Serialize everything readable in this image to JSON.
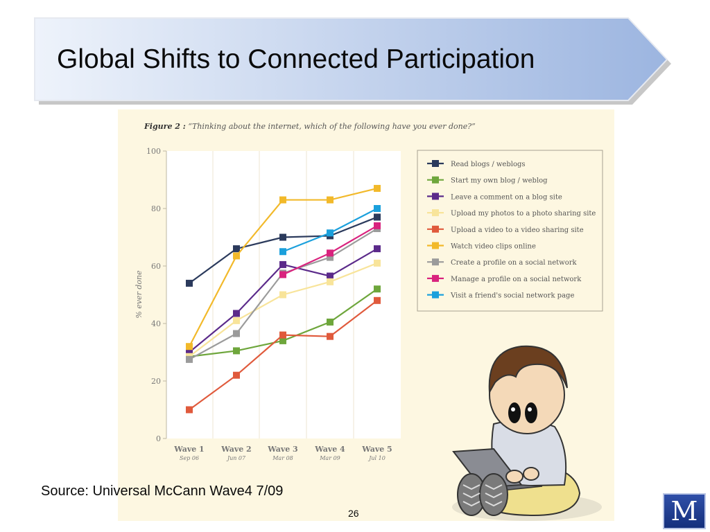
{
  "slide": {
    "title": "Global Shifts to Connected Participation",
    "source": "Source: Universal McCann Wave4 7/09",
    "page_number": "26",
    "logo_letter": "M"
  },
  "figure": {
    "label": "Figure 2 :",
    "question": "“Thinking about the internet, which of the following have you ever done?”"
  },
  "chart_data": {
    "type": "line",
    "ylabel": "% ever done",
    "ylim": [
      0,
      100
    ],
    "yticks": [
      0,
      20,
      40,
      60,
      80,
      100
    ],
    "categories": [
      "Wave 1",
      "Wave 2",
      "Wave 3",
      "Wave 4",
      "Wave 5"
    ],
    "category_dates": [
      "Sep 06",
      "Jun 07",
      "Mar 08",
      "Mar 09",
      "Jul 10"
    ],
    "grid": true,
    "legend_position": "right",
    "series": [
      {
        "name": "Read blogs / weblogs",
        "color": "#2b3a5c",
        "values": [
          54,
          66,
          70,
          70.5,
          77
        ]
      },
      {
        "name": "Start my own blog / weblog",
        "color": "#6ea63c",
        "values": [
          28.5,
          30.5,
          34,
          40.5,
          52
        ]
      },
      {
        "name": "Leave a comment on a blog site",
        "color": "#5b2a8a",
        "values": [
          30,
          43.5,
          60.5,
          56.5,
          66
        ]
      },
      {
        "name": "Upload my photos to a  photo sharing site",
        "color": "#f8e49a",
        "values": [
          28.5,
          41,
          50,
          54.5,
          61
        ]
      },
      {
        "name": "Upload a video to a video sharing site",
        "color": "#e05a3c",
        "values": [
          10,
          22,
          36,
          35.5,
          48
        ]
      },
      {
        "name": "Watch video clips online",
        "color": "#f2b92a",
        "values": [
          32,
          63.5,
          83,
          83,
          87
        ]
      },
      {
        "name": "Create a profile on a social network",
        "color": "#9b9b9b",
        "values": [
          27.5,
          36.5,
          57.5,
          63,
          73
        ]
      },
      {
        "name": "Manage a profile on a social network",
        "color": "#d9237e",
        "values": [
          null,
          null,
          57,
          64.5,
          74
        ]
      },
      {
        "name": "Visit a friend's social network page",
        "color": "#1ba0dc",
        "values": [
          null,
          null,
          65,
          71.5,
          80
        ]
      }
    ]
  }
}
